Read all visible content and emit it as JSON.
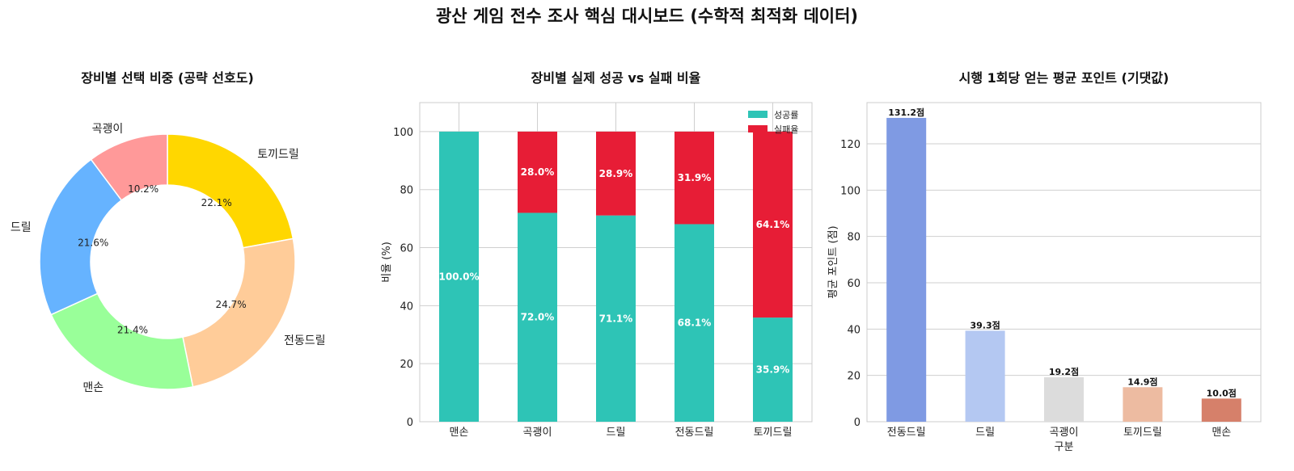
{
  "title": "광산 게임 전수 조사 핵심 대시보드 (수학적 최적화 데이터)",
  "chart_data": [
    {
      "type": "pie",
      "title": "장비별 선택 비중 (공략 선호도)",
      "donut": true,
      "labels": [
        "토끼드릴",
        "전동드릴",
        "맨손",
        "드릴",
        "곡괭이"
      ],
      "values": [
        22.1,
        24.7,
        21.4,
        21.6,
        10.2
      ],
      "value_labels": [
        "22.1%",
        "24.7%",
        "21.4%",
        "21.6%",
        "10.2%"
      ],
      "colors": [
        "#FFD700",
        "#FFCC99",
        "#99FF99",
        "#66B3FF",
        "#FF9999"
      ],
      "start_angle": 90,
      "direction": "clockwise"
    },
    {
      "type": "bar",
      "stacked": true,
      "title": "장비별 실제 성공 vs 실패 비율",
      "categories": [
        "맨손",
        "곡괭이",
        "드릴",
        "전동드릴",
        "토끼드릴"
      ],
      "series": [
        {
          "name": "성공률",
          "color": "#2EC4B6",
          "values": [
            100.0,
            72.0,
            71.1,
            68.1,
            35.9
          ],
          "labels": [
            "100.0%",
            "72.0%",
            "71.1%",
            "68.1%",
            "35.9%"
          ]
        },
        {
          "name": "실패율",
          "color": "#E71D36",
          "values": [
            0.0,
            28.0,
            28.9,
            31.9,
            64.1
          ],
          "labels": [
            "",
            "28.0%",
            "28.9%",
            "31.9%",
            "64.1%"
          ]
        }
      ],
      "xlabel": "",
      "ylabel": "비율 (%)",
      "ylim": [
        0,
        110
      ],
      "yticks": [
        "0",
        "20",
        "40",
        "60",
        "80",
        "100"
      ],
      "legend": "top-right",
      "grid": true
    },
    {
      "type": "bar",
      "title": "시행 1회당 얻는 평균 포인트 (기댓값)",
      "categories": [
        "전동드릴",
        "드릴",
        "곡괭이",
        "토끼드릴",
        "맨손"
      ],
      "values": [
        131.2,
        39.3,
        19.2,
        14.9,
        10.0
      ],
      "value_labels": [
        "131.2점",
        "39.3점",
        "19.2점",
        "14.9점",
        "10.0점"
      ],
      "colors": [
        "#7F9AE3",
        "#B4C8F2",
        "#DCDCDC",
        "#EDBBA1",
        "#D6806A"
      ],
      "xlabel": "구분",
      "ylabel": "평균 포인트 (점)",
      "ylim": [
        0,
        137.8
      ],
      "yticks": [
        "0",
        "20",
        "40",
        "60",
        "80",
        "100",
        "120"
      ],
      "grid": true
    }
  ]
}
